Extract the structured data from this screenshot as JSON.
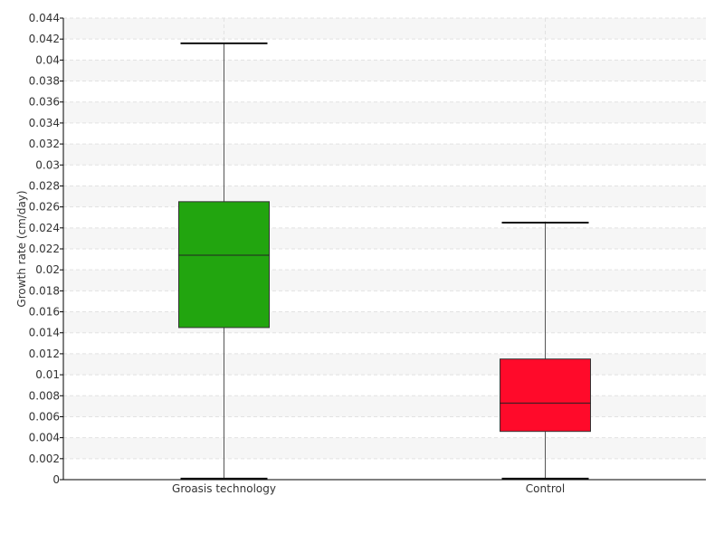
{
  "chart_data": {
    "type": "boxplot",
    "ylabel": "Growth rate (cm/day)",
    "ylim": [
      0,
      0.044
    ],
    "yticks": [
      "0",
      "0.002",
      "0.004",
      "0.006",
      "0.008",
      "0.01",
      "0.012",
      "0.014",
      "0.016",
      "0.018",
      "0.02",
      "0.022",
      "0.024",
      "0.026",
      "0.028",
      "0.03",
      "0.032",
      "0.034",
      "0.036",
      "0.038",
      "0.04",
      "0.042",
      "0.044"
    ],
    "grid": true,
    "categories": [
      "Groasis technology",
      "Control"
    ],
    "boxes": [
      {
        "category": "Groasis technology",
        "min": 0.0001,
        "q1": 0.0145,
        "median": 0.0214,
        "q3": 0.0265,
        "max": 0.0416,
        "color": "#22a50f"
      },
      {
        "category": "Control",
        "min": 0.0001,
        "q1": 0.0046,
        "median": 0.0073,
        "q3": 0.0115,
        "max": 0.0245,
        "color": "#ff0a2a"
      }
    ]
  }
}
